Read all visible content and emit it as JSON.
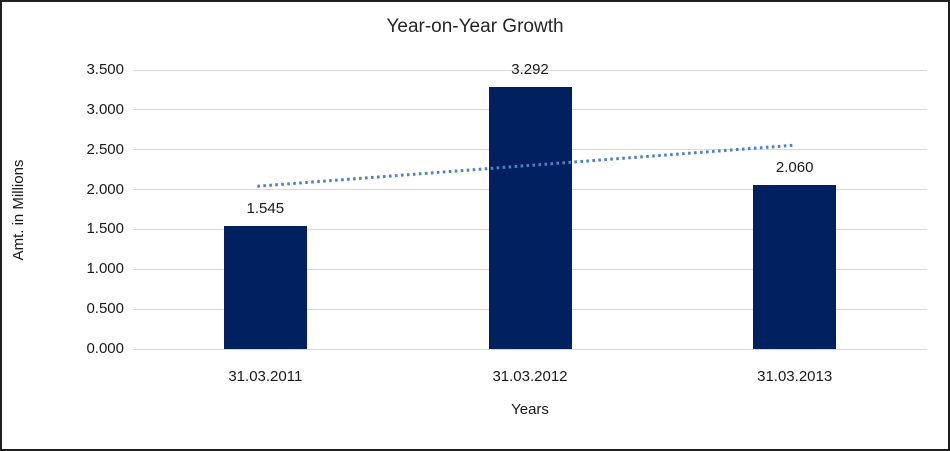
{
  "chart_data": {
    "type": "bar",
    "title": "Year-on-Year Growth",
    "xlabel": "Years",
    "ylabel": "Amt. in Millions",
    "categories": [
      "31.03.2011",
      "31.03.2012",
      "31.03.2013"
    ],
    "values": [
      1.545,
      3.292,
      2.06
    ],
    "value_labels": [
      "1.545",
      "3.292",
      "2.060"
    ],
    "ylim": [
      0,
      3.5
    ],
    "ytick_step": 0.5,
    "ytick_labels": [
      "0.000",
      "0.500",
      "1.000",
      "1.500",
      "2.000",
      "2.500",
      "3.000",
      "3.500"
    ],
    "grid": true,
    "legend": "none",
    "bar_color": "#002060",
    "gridline_color": "#D9D9D9",
    "trendline": {
      "type": "linear",
      "style": "dotted",
      "color": "#4F81BD",
      "start_value": 2.042,
      "end_value": 2.557
    }
  }
}
